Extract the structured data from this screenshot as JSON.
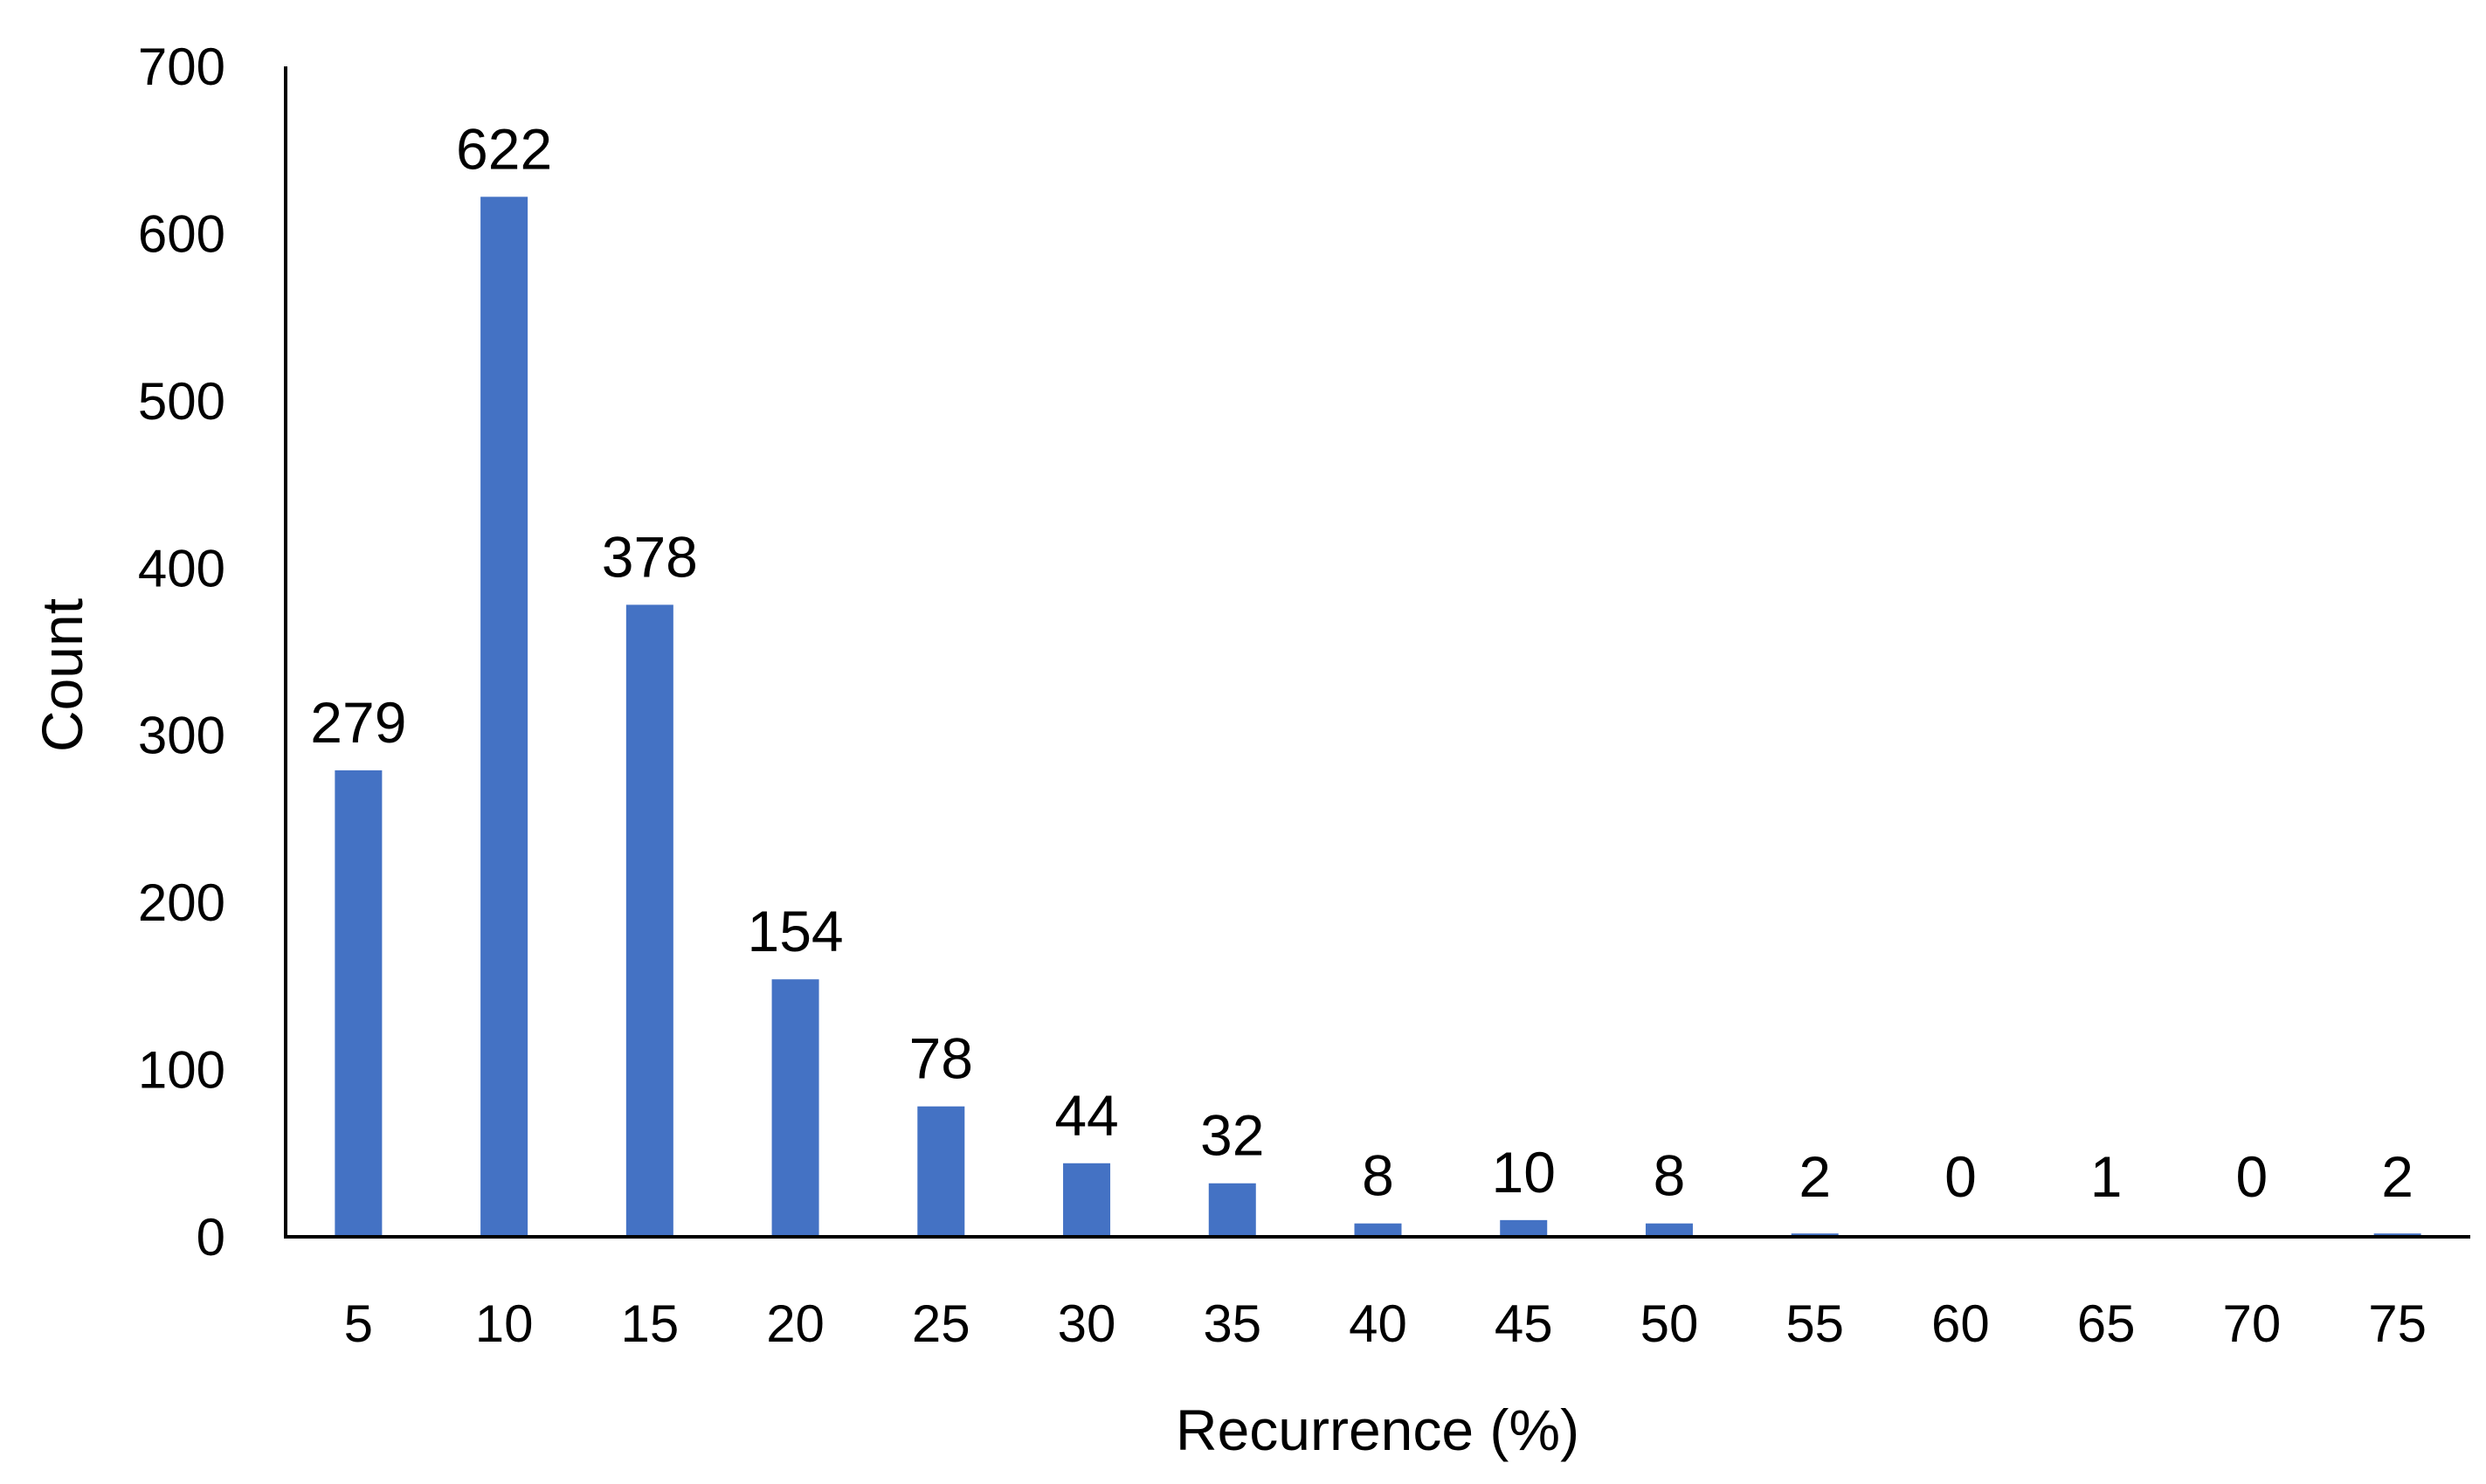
{
  "chart_data": {
    "type": "bar",
    "categories": [
      "5",
      "10",
      "15",
      "20",
      "25",
      "30",
      "35",
      "40",
      "45",
      "50",
      "55",
      "60",
      "65",
      "70",
      "75"
    ],
    "values": [
      279,
      622,
      378,
      154,
      78,
      44,
      32,
      8,
      10,
      8,
      2,
      0,
      1,
      0,
      2
    ],
    "data_labels": [
      "279",
      "622",
      "378",
      "154",
      "78",
      "44",
      "32",
      "8",
      "10",
      "8",
      "2",
      "0",
      "1",
      "0",
      "2"
    ],
    "xlabel": "Recurrence (%)",
    "ylabel": "Count",
    "ylim": [
      0,
      700
    ],
    "yticks": [
      0,
      100,
      200,
      300,
      400,
      500,
      600,
      700
    ],
    "grid": false,
    "legend": "none",
    "bar_color": "#4472C4"
  }
}
